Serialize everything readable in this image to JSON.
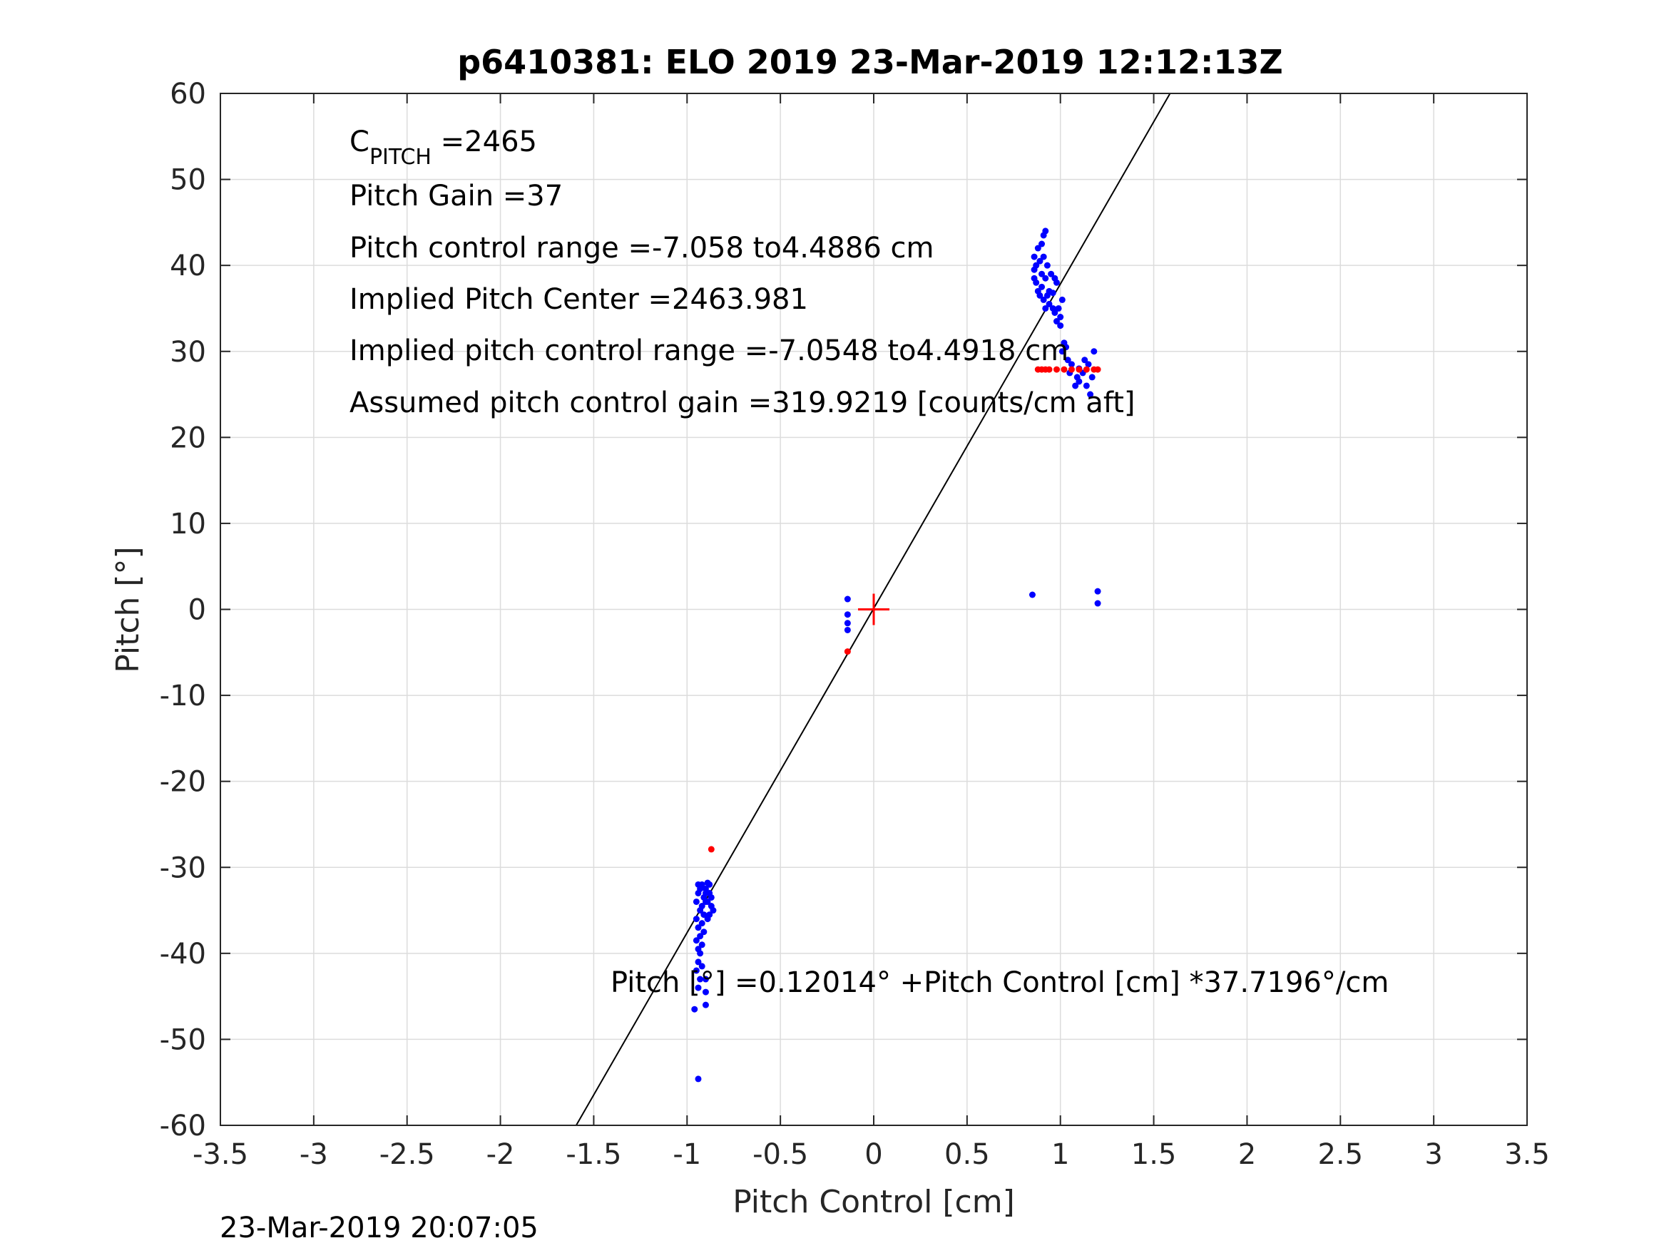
{
  "chart_data": {
    "type": "scatter",
    "title": "p6410381: ELO 2019 23-Mar-2019 12:12:13Z",
    "xlabel": "Pitch Control [cm]",
    "ylabel": "Pitch [°]",
    "xlim": [
      -3.5,
      3.5
    ],
    "ylim": [
      -60,
      60
    ],
    "xticks": [
      "-3.5",
      "-3",
      "-2.5",
      "-2",
      "-1.5",
      "-1",
      "-0.5",
      "0",
      "0.5",
      "1",
      "1.5",
      "2",
      "2.5",
      "3",
      "3.5"
    ],
    "yticks": [
      "60",
      "50",
      "40",
      "30",
      "20",
      "10",
      "0",
      "-10",
      "-20",
      "-30",
      "-40",
      "-50",
      "-60"
    ],
    "grid": true,
    "annotations": {
      "c_pitch_main": "C",
      "c_pitch_sub": "PITCH",
      "c_pitch_value": " =2465",
      "pitch_gain": "Pitch Gain =37",
      "pitch_control_range": "Pitch control range =-7.058 to4.4886 cm",
      "implied_pitch_center": "Implied Pitch Center =2463.981",
      "implied_pitch_control_range": "Implied pitch control range =-7.0548 to4.4918 cm",
      "assumed_gain": "Assumed pitch control gain =319.9219 [counts/cm aft]",
      "fit_equation": "Pitch [°] =0.12014° +Pitch Control [cm] *37.7196°/cm"
    },
    "fit_line": {
      "intercept": 0.12014,
      "slope": 37.7196,
      "color": "#000000"
    },
    "center_marker": {
      "x": 0,
      "y": 0,
      "color": "#ff0000"
    },
    "series": [
      {
        "color": "#0000ff",
        "points": [
          [
            -0.95,
            -34
          ],
          [
            -0.94,
            -33
          ],
          [
            -0.93,
            -35
          ],
          [
            -0.92,
            -32
          ],
          [
            -0.91,
            -33.5
          ],
          [
            -0.9,
            -32.5
          ],
          [
            -0.89,
            -31.8
          ],
          [
            -0.88,
            -33
          ],
          [
            -0.87,
            -34.5
          ],
          [
            -0.86,
            -35
          ],
          [
            -0.95,
            -36
          ],
          [
            -0.94,
            -37
          ],
          [
            -0.93,
            -38
          ],
          [
            -0.92,
            -36.5
          ],
          [
            -0.91,
            -35.5
          ],
          [
            -0.9,
            -34
          ],
          [
            -0.89,
            -36
          ],
          [
            -0.88,
            -35.5
          ],
          [
            -0.92,
            -39
          ],
          [
            -0.93,
            -40
          ],
          [
            -0.94,
            -41
          ],
          [
            -0.95,
            -42
          ],
          [
            -0.93,
            -43
          ],
          [
            -0.94,
            -44
          ],
          [
            -0.96,
            -46.5
          ],
          [
            -0.9,
            -43
          ],
          [
            -0.9,
            -44.5
          ],
          [
            -0.9,
            -46
          ],
          [
            -0.91,
            -37.5
          ],
          [
            -0.92,
            -34.5
          ],
          [
            -0.94,
            -32
          ],
          [
            -0.93,
            -32.5
          ],
          [
            -0.9,
            -33
          ],
          [
            -0.89,
            -34
          ],
          [
            -0.88,
            -32
          ],
          [
            -0.87,
            -33.5
          ],
          [
            -0.95,
            -38.5
          ],
          [
            -0.94,
            -39.5
          ],
          [
            -0.94,
            -54.6
          ],
          [
            -0.92,
            -41.5
          ],
          [
            -0.14,
            1.2
          ],
          [
            -0.14,
            -0.6
          ],
          [
            -0.14,
            -1.6
          ],
          [
            -0.14,
            -2.4
          ],
          [
            0.85,
            1.7
          ],
          [
            1.2,
            2.1
          ],
          [
            1.2,
            0.7
          ],
          [
            0.86,
            41
          ],
          [
            0.86,
            39.5
          ],
          [
            0.86,
            38.5
          ],
          [
            0.87,
            40
          ],
          [
            0.87,
            38
          ],
          [
            0.88,
            37
          ],
          [
            0.88,
            42
          ],
          [
            0.89,
            40.5
          ],
          [
            0.89,
            36.5
          ],
          [
            0.9,
            42.5
          ],
          [
            0.9,
            39
          ],
          [
            0.9,
            37.5
          ],
          [
            0.91,
            43.5
          ],
          [
            0.91,
            41
          ],
          [
            0.91,
            36
          ],
          [
            0.92,
            44
          ],
          [
            0.92,
            38.5
          ],
          [
            0.92,
            35
          ],
          [
            0.93,
            40
          ],
          [
            0.93,
            36.5
          ],
          [
            0.94,
            37
          ],
          [
            0.95,
            39
          ],
          [
            0.96,
            36.8
          ],
          [
            0.97,
            38.5
          ],
          [
            0.98,
            38
          ],
          [
            0.98,
            33.5
          ],
          [
            0.99,
            35
          ],
          [
            1.0,
            34
          ],
          [
            1.01,
            36
          ],
          [
            1.02,
            31
          ],
          [
            1.03,
            30.5
          ],
          [
            1.04,
            29
          ],
          [
            1.05,
            27.5
          ],
          [
            1.06,
            28.5
          ],
          [
            1.08,
            26
          ],
          [
            1.09,
            27
          ],
          [
            1.1,
            26.5
          ],
          [
            1.12,
            27.5
          ],
          [
            1.14,
            26
          ],
          [
            1.15,
            28.5
          ],
          [
            1.16,
            25
          ],
          [
            1.17,
            27
          ],
          [
            1.18,
            30
          ],
          [
            0.96,
            35
          ],
          [
            0.97,
            34.5
          ],
          [
            1.0,
            33
          ],
          [
            1.01,
            30
          ],
          [
            1.13,
            29
          ],
          [
            1.1,
            28
          ],
          [
            0.94,
            35.5
          ]
        ]
      },
      {
        "color": "#ff0000",
        "points": [
          [
            0.88,
            27.9
          ],
          [
            0.9,
            27.9
          ],
          [
            0.92,
            27.9
          ],
          [
            0.94,
            27.9
          ],
          [
            0.98,
            27.9
          ],
          [
            1.02,
            27.9
          ],
          [
            1.06,
            27.9
          ],
          [
            1.1,
            27.9
          ],
          [
            1.14,
            27.9
          ],
          [
            1.18,
            27.9
          ],
          [
            1.2,
            27.9
          ],
          [
            -0.87,
            -27.9
          ],
          [
            -0.14,
            -4.9
          ]
        ]
      }
    ]
  },
  "footer": {
    "timestamp": "23-Mar-2019 20:07:05"
  }
}
